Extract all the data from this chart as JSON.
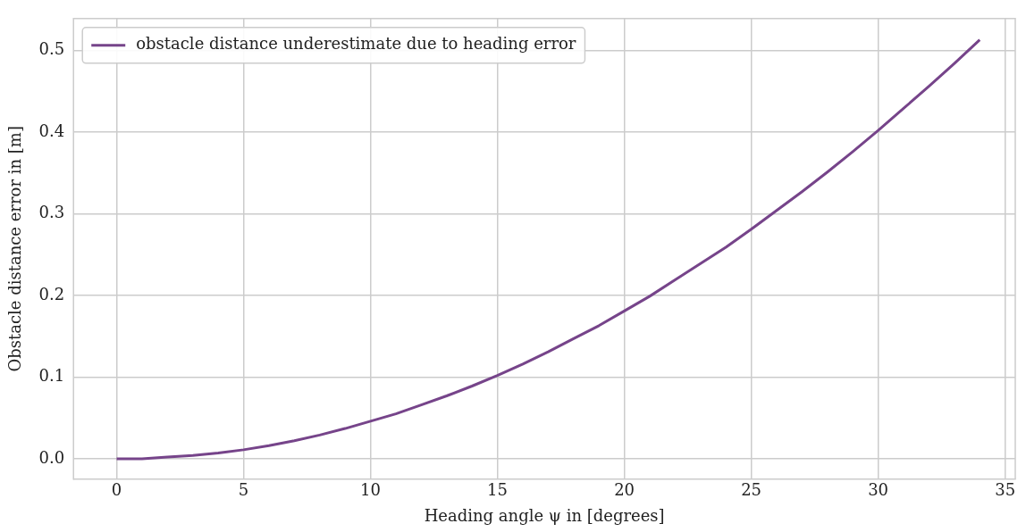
{
  "chart_data": {
    "type": "line",
    "xlabel": "Heading angle ψ in [degrees]",
    "ylabel": "Obstacle distance error in [m]",
    "series": [
      {
        "name": "obstacle distance underestimate due to heading error",
        "color": "#76448a",
        "x": [
          0,
          1,
          2,
          3,
          4,
          5,
          6,
          7,
          8,
          9,
          10,
          11,
          12,
          13,
          14,
          15,
          16,
          17,
          18,
          19,
          20,
          21,
          22,
          23,
          24,
          25,
          26,
          27,
          28,
          29,
          30,
          31,
          32,
          33,
          34
        ],
        "values": [
          0,
          0.0,
          0.002,
          0.004,
          0.007,
          0.011,
          0.016,
          0.022,
          0.029,
          0.037,
          0.046,
          0.055,
          0.066,
          0.077,
          0.089,
          0.102,
          0.116,
          0.131,
          0.147,
          0.163,
          0.181,
          0.199,
          0.219,
          0.239,
          0.259,
          0.281,
          0.304,
          0.327,
          0.351,
          0.376,
          0.402,
          0.429,
          0.456,
          0.484,
          0.513
        ]
      }
    ],
    "xlim": [
      -1.7,
      35.4
    ],
    "xticks": [
      0,
      5,
      10,
      15,
      20,
      25,
      30,
      35
    ],
    "ylim": [
      -0.025,
      0.539
    ],
    "yticks": [
      {
        "value": 0,
        "label": "0.0"
      },
      0.1,
      0.2,
      0.3,
      0.4,
      0.5
    ],
    "grid": true,
    "legend": "top left",
    "marker": "none",
    "line_style": "solid"
  }
}
